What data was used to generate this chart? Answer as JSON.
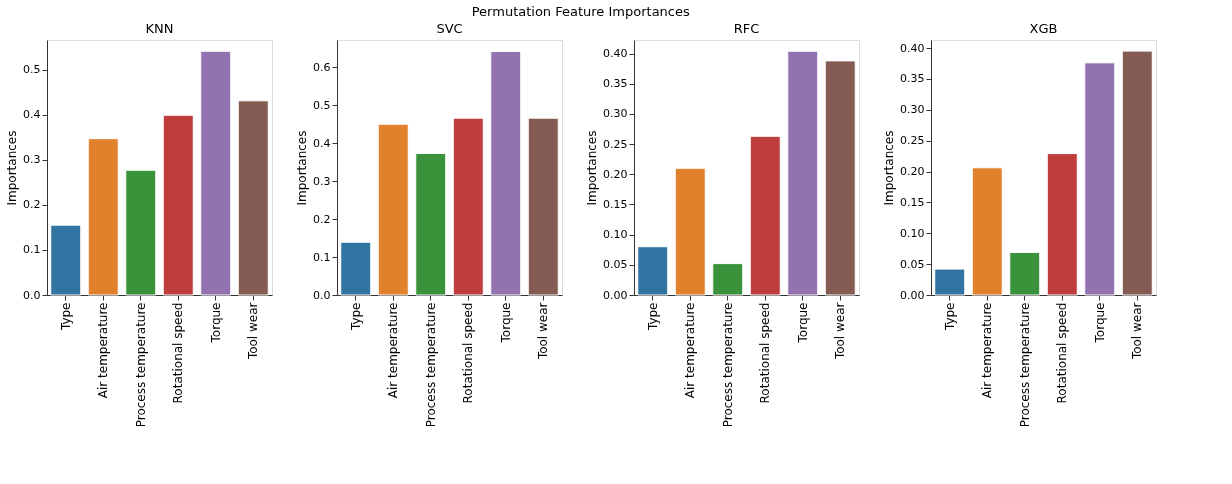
{
  "chart_data": [
    {
      "type": "bar",
      "title": "KNN",
      "ylabel": "Importances",
      "annotations": [
        "Permutation Feature Importances"
      ],
      "categories": [
        "Type",
        "Air temperature",
        "Process temperature",
        "Rotational speed",
        "Torque",
        "Tool wear"
      ],
      "values": [
        0.155,
        0.347,
        0.277,
        0.399,
        0.541,
        0.431
      ],
      "colors": [
        "#3274a1",
        "#e1812c",
        "#3a923a",
        "#c03d3e",
        "#9372b2",
        "#845b53"
      ],
      "ylim": [
        0,
        0.566
      ],
      "yticks": [
        {
          "value": 0,
          "label": "0.0"
        },
        0.1,
        0.2,
        0.3,
        0.4,
        0.5
      ],
      "grid": false
    },
    {
      "type": "bar",
      "title": "SVC",
      "ylabel": "Importances",
      "categories": [
        "Type",
        "Air temperature",
        "Process temperature",
        "Rotational speed",
        "Torque",
        "Tool wear"
      ],
      "values": [
        0.139,
        0.45,
        0.373,
        0.466,
        0.642,
        0.466
      ],
      "colors": [
        "#3274a1",
        "#e1812c",
        "#3a923a",
        "#c03d3e",
        "#9372b2",
        "#845b53"
      ],
      "ylim": [
        0,
        0.672
      ],
      "yticks": [
        {
          "value": 0,
          "label": "0.0"
        },
        0.1,
        0.2,
        0.3,
        0.4,
        0.5,
        0.6
      ],
      "grid": false
    },
    {
      "type": "bar",
      "title": "RFC",
      "ylabel": "Importances",
      "categories": [
        "Type",
        "Air temperature",
        "Process temperature",
        "Rotational speed",
        "Torque",
        "Tool wear"
      ],
      "values": [
        0.08,
        0.21,
        0.052,
        0.263,
        0.404,
        0.388
      ],
      "colors": [
        "#3274a1",
        "#e1812c",
        "#3a923a",
        "#c03d3e",
        "#9372b2",
        "#845b53"
      ],
      "ylim": [
        0,
        0.4226
      ],
      "yticks": [
        {
          "value": 0,
          "label": "0.00"
        },
        0.05,
        {
          "value": 0.1,
          "label": "0.10"
        },
        0.15,
        {
          "value": 0.2,
          "label": "0.20"
        },
        0.25,
        {
          "value": 0.3,
          "label": "0.30"
        },
        0.35,
        {
          "value": 0.4,
          "label": "0.40"
        }
      ],
      "grid": false
    },
    {
      "type": "bar",
      "title": "XGB",
      "ylabel": "Importances",
      "categories": [
        "Type",
        "Air temperature",
        "Process temperature",
        "Rotational speed",
        "Torque",
        "Tool wear"
      ],
      "values": [
        0.042,
        0.206,
        0.069,
        0.229,
        0.376,
        0.395
      ],
      "colors": [
        "#3274a1",
        "#e1812c",
        "#3a923a",
        "#c03d3e",
        "#9372b2",
        "#845b53"
      ],
      "ylim": [
        0,
        0.413
      ],
      "yticks": [
        {
          "value": 0,
          "label": "0.00"
        },
        0.05,
        {
          "value": 0.1,
          "label": "0.10"
        },
        0.15,
        {
          "value": 0.2,
          "label": "0.20"
        },
        0.25,
        {
          "value": 0.3,
          "label": "0.30"
        },
        0.35,
        {
          "value": 0.4,
          "label": "0.40"
        }
      ],
      "grid": false
    }
  ]
}
